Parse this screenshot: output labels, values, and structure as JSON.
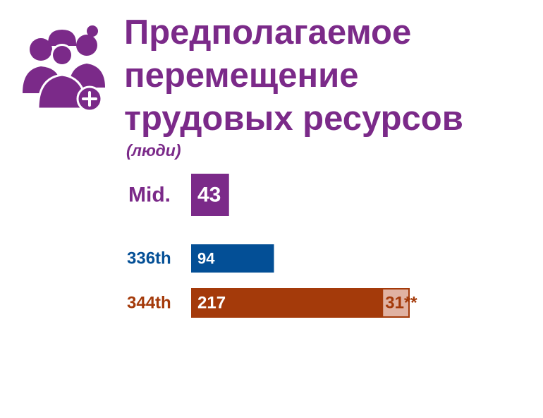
{
  "title_lines": [
    "Предполагаемое",
    "перемещение",
    "трудовых ресурсов"
  ],
  "subtitle": "(люди)",
  "icon": "people-group-plus-icon",
  "colors": {
    "purple": "#7b2a89",
    "blue": "#034f96",
    "rust": "#a43a0a",
    "rust_light": "#e0b2a2"
  },
  "chart_data": {
    "type": "bar",
    "orientation": "horizontal",
    "stacked": true,
    "categories": [
      "Mid.",
      "336th",
      "344th"
    ],
    "series": [
      {
        "values": [
          43,
          94,
          217
        ],
        "labels": [
          "43",
          "94",
          "217"
        ]
      },
      {
        "values": [
          0,
          0,
          31
        ],
        "labels": [
          "",
          "",
          "31**"
        ]
      }
    ],
    "category_colors": [
      "#7b2a89",
      "#034f96",
      "#a43a0a"
    ],
    "secondary_color": "#e0b2a2"
  }
}
